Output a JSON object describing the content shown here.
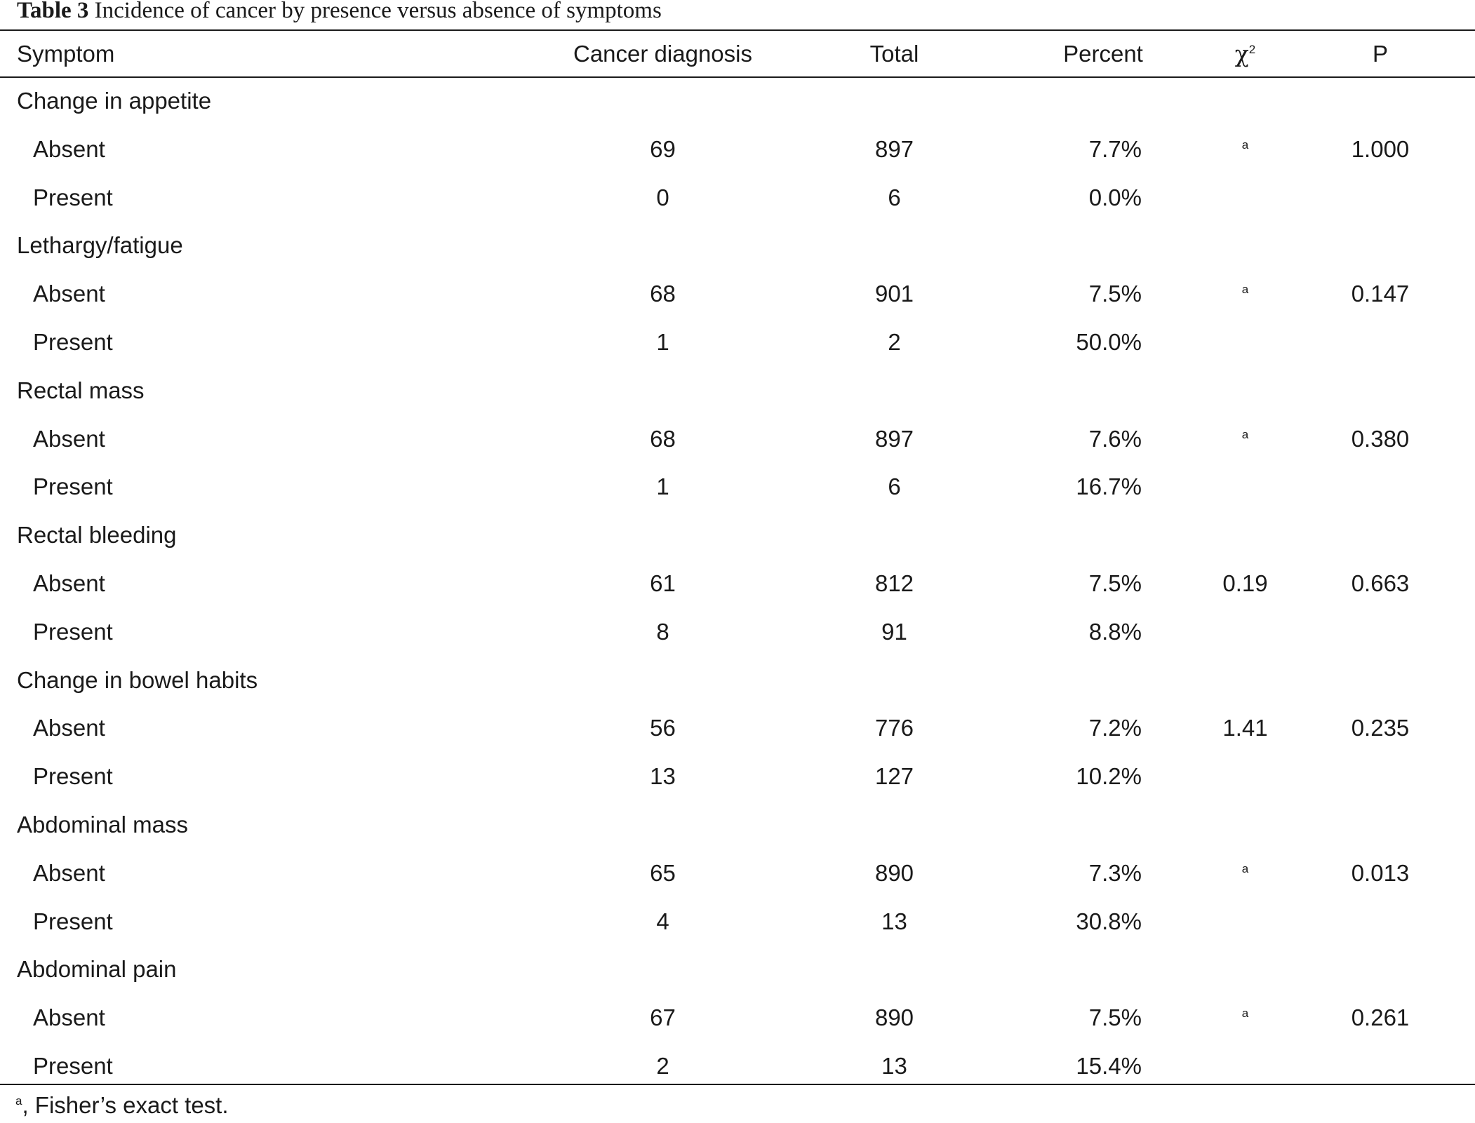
{
  "title": {
    "label": "Table 3",
    "text": "Incidence of cancer by presence versus absence of symptoms"
  },
  "columns": {
    "symptom": "Symptom",
    "cancer_diagnosis": "Cancer diagnosis",
    "total": "Total",
    "percent": "Percent",
    "chi_symbol": "χ",
    "chi_superscript": "2",
    "p": "P"
  },
  "groups": [
    {
      "symptom": "Change in appetite",
      "absent": {
        "label": "Absent",
        "cancer": "69",
        "total": "897",
        "percent": "7.7%",
        "chi": "",
        "chi_note": "a",
        "p": "1.000"
      },
      "present": {
        "label": "Present",
        "cancer": "0",
        "total": "6",
        "percent": "0.0%"
      }
    },
    {
      "symptom": "Lethargy/fatigue",
      "absent": {
        "label": "Absent",
        "cancer": "68",
        "total": "901",
        "percent": "7.5%",
        "chi": "",
        "chi_note": "a",
        "p": "0.147"
      },
      "present": {
        "label": "Present",
        "cancer": "1",
        "total": "2",
        "percent": "50.0%"
      }
    },
    {
      "symptom": "Rectal mass",
      "absent": {
        "label": "Absent",
        "cancer": "68",
        "total": "897",
        "percent": "7.6%",
        "chi": "",
        "chi_note": "a",
        "p": "0.380"
      },
      "present": {
        "label": "Present",
        "cancer": "1",
        "total": "6",
        "percent": "16.7%"
      }
    },
    {
      "symptom": "Rectal bleeding",
      "absent": {
        "label": "Absent",
        "cancer": "61",
        "total": "812",
        "percent": "7.5%",
        "chi": "0.19",
        "chi_note": "",
        "p": "0.663"
      },
      "present": {
        "label": "Present",
        "cancer": "8",
        "total": "91",
        "percent": "8.8%"
      }
    },
    {
      "symptom": "Change in bowel habits",
      "absent": {
        "label": "Absent",
        "cancer": "56",
        "total": "776",
        "percent": "7.2%",
        "chi": "1.41",
        "chi_note": "",
        "p": "0.235"
      },
      "present": {
        "label": "Present",
        "cancer": "13",
        "total": "127",
        "percent": "10.2%"
      }
    },
    {
      "symptom": "Abdominal mass",
      "absent": {
        "label": "Absent",
        "cancer": "65",
        "total": "890",
        "percent": "7.3%",
        "chi": "",
        "chi_note": "a",
        "p": "0.013"
      },
      "present": {
        "label": "Present",
        "cancer": "4",
        "total": "13",
        "percent": "30.8%"
      }
    },
    {
      "symptom": "Abdominal pain",
      "absent": {
        "label": "Absent",
        "cancer": "67",
        "total": "890",
        "percent": "7.5%",
        "chi": "",
        "chi_note": "a",
        "p": "0.261"
      },
      "present": {
        "label": "Present",
        "cancer": "2",
        "total": "13",
        "percent": "15.4%"
      }
    }
  ],
  "footnote": {
    "marker": "a",
    "text": ", Fisher’s exact test."
  }
}
